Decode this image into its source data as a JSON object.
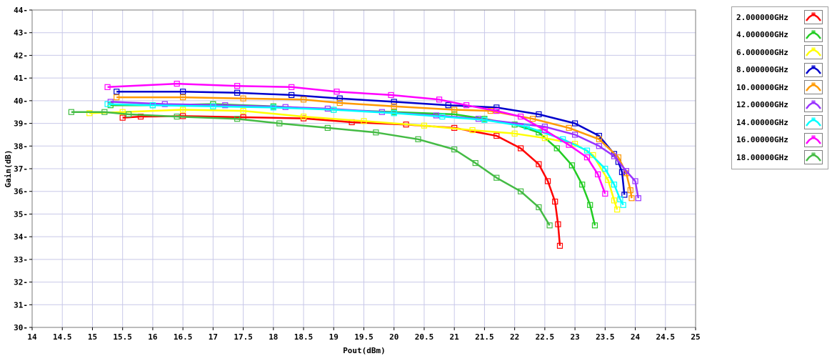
{
  "chart_data": {
    "type": "line",
    "xlabel": "Pout(dBm)",
    "ylabel": "Gain(dB)",
    "xlim": [
      14,
      25
    ],
    "ylim": [
      30,
      44
    ],
    "x_ticks": [
      "14",
      "14.5",
      "15",
      "15.5",
      "16",
      "16.5",
      "17",
      "17.5",
      "18",
      "18.5",
      "19",
      "19.5",
      "20",
      "20.5",
      "21",
      "21.5",
      "22",
      "22.5",
      "23",
      "23.5",
      "24",
      "24.5",
      "25"
    ],
    "y_ticks": [
      "30",
      "31",
      "32",
      "33",
      "34",
      "35",
      "36",
      "37",
      "38",
      "39",
      "40",
      "41",
      "42",
      "43",
      "44"
    ],
    "grid": true,
    "legend_position": "right",
    "series": [
      {
        "name": "2.000000GHz",
        "color": "#ff0000",
        "points": [
          [
            15.5,
            39.25
          ],
          [
            15.8,
            39.3
          ],
          [
            16.5,
            39.32
          ],
          [
            17.5,
            39.27
          ],
          [
            18.5,
            39.22
          ],
          [
            19.3,
            39.05
          ],
          [
            20.2,
            38.95
          ],
          [
            21,
            38.8
          ],
          [
            21.7,
            38.45
          ],
          [
            22.1,
            37.9
          ],
          [
            22.4,
            37.2
          ],
          [
            22.55,
            36.45
          ],
          [
            22.67,
            35.55
          ],
          [
            22.72,
            34.55
          ],
          [
            22.75,
            33.6
          ]
        ]
      },
      {
        "name": "4.000000GHz",
        "color": "#22cc22",
        "points": [
          [
            15.3,
            39.8
          ],
          [
            16,
            39.8
          ],
          [
            17,
            39.85
          ],
          [
            18,
            39.75
          ],
          [
            19,
            39.6
          ],
          [
            20,
            39.5
          ],
          [
            21,
            39.4
          ],
          [
            21.5,
            39.2
          ],
          [
            22,
            38.95
          ],
          [
            22.4,
            38.6
          ],
          [
            22.7,
            37.9
          ],
          [
            22.95,
            37.15
          ],
          [
            23.12,
            36.3
          ],
          [
            23.25,
            35.4
          ],
          [
            23.33,
            34.5
          ]
        ]
      },
      {
        "name": "6.000000GHz",
        "color": "#ffff00",
        "points": [
          [
            14.95,
            39.45
          ],
          [
            15.5,
            39.5
          ],
          [
            16.5,
            39.6
          ],
          [
            17.5,
            39.55
          ],
          [
            18.5,
            39.3
          ],
          [
            19.5,
            39.1
          ],
          [
            20.5,
            38.9
          ],
          [
            21.3,
            38.7
          ],
          [
            22,
            38.55
          ],
          [
            22.5,
            38.35
          ],
          [
            23,
            38.1
          ],
          [
            23.3,
            37.6
          ],
          [
            23.55,
            36.5
          ],
          [
            23.65,
            35.6
          ],
          [
            23.7,
            35.2
          ]
        ]
      },
      {
        "name": "8.000000GHz",
        "color": "#0000cc",
        "points": [
          [
            15.4,
            40.4
          ],
          [
            16.5,
            40.4
          ],
          [
            17.4,
            40.35
          ],
          [
            18.3,
            40.25
          ],
          [
            19.1,
            40.1
          ],
          [
            20,
            39.95
          ],
          [
            20.9,
            39.8
          ],
          [
            21.7,
            39.7
          ],
          [
            22.4,
            39.4
          ],
          [
            23,
            39
          ],
          [
            23.4,
            38.45
          ],
          [
            23.65,
            37.65
          ],
          [
            23.72,
            37.3
          ],
          [
            23.78,
            36.85
          ],
          [
            23.82,
            35.85
          ]
        ]
      },
      {
        "name": "10.00000GHz",
        "color": "#ff9900",
        "points": [
          [
            15.4,
            40.15
          ],
          [
            16.5,
            40.15
          ],
          [
            17.5,
            40.1
          ],
          [
            18.5,
            40.05
          ],
          [
            19.1,
            39.9
          ],
          [
            20,
            39.75
          ],
          [
            21,
            39.6
          ],
          [
            21.6,
            39.55
          ],
          [
            22.3,
            39.2
          ],
          [
            22.9,
            38.8
          ],
          [
            23.4,
            38.3
          ],
          [
            23.72,
            37.5
          ],
          [
            23.85,
            36.8
          ],
          [
            23.92,
            36.05
          ],
          [
            23.94,
            35.7
          ]
        ]
      },
      {
        "name": "12.00000GHz",
        "color": "#9933ff",
        "points": [
          [
            15.3,
            39.95
          ],
          [
            16.2,
            39.85
          ],
          [
            17.2,
            39.8
          ],
          [
            18.2,
            39.72
          ],
          [
            18.9,
            39.65
          ],
          [
            19.8,
            39.5
          ],
          [
            20.7,
            39.35
          ],
          [
            21.4,
            39.2
          ],
          [
            22.5,
            38.85
          ],
          [
            23,
            38.5
          ],
          [
            23.4,
            38
          ],
          [
            23.65,
            37.55
          ],
          [
            23.85,
            36.9
          ],
          [
            24,
            36.45
          ],
          [
            24.05,
            35.7
          ]
        ]
      },
      {
        "name": "14.00000GHz",
        "color": "#00ffff",
        "points": [
          [
            15.25,
            39.85
          ],
          [
            16,
            39.8
          ],
          [
            17,
            39.75
          ],
          [
            18,
            39.7
          ],
          [
            19,
            39.6
          ],
          [
            20,
            39.45
          ],
          [
            20.8,
            39.3
          ],
          [
            21.5,
            39.15
          ],
          [
            22.2,
            38.85
          ],
          [
            22.8,
            38.3
          ],
          [
            23.2,
            37.8
          ],
          [
            23.5,
            37
          ],
          [
            23.65,
            36.3
          ],
          [
            23.75,
            35.65
          ],
          [
            23.8,
            35.4
          ]
        ]
      },
      {
        "name": "16.00000GHz",
        "color": "#ff00ff",
        "points": [
          [
            15.25,
            40.6
          ],
          [
            16.4,
            40.75
          ],
          [
            17.4,
            40.65
          ],
          [
            18.3,
            40.6
          ],
          [
            19.05,
            40.4
          ],
          [
            19.95,
            40.25
          ],
          [
            20.75,
            40.05
          ],
          [
            21.2,
            39.8
          ],
          [
            21.7,
            39.55
          ],
          [
            22.1,
            39.3
          ],
          [
            22.5,
            38.7
          ],
          [
            22.9,
            38.05
          ],
          [
            23.2,
            37.5
          ],
          [
            23.38,
            36.75
          ],
          [
            23.5,
            35.9
          ]
        ]
      },
      {
        "name": "18.00000GHz",
        "color": "#44bb44",
        "points": [
          [
            14.65,
            39.5
          ],
          [
            15.2,
            39.5
          ],
          [
            15.6,
            39.4
          ],
          [
            16.4,
            39.3
          ],
          [
            17.4,
            39.2
          ],
          [
            18.1,
            39
          ],
          [
            18.9,
            38.8
          ],
          [
            19.7,
            38.6
          ],
          [
            20.4,
            38.3
          ],
          [
            21,
            37.85
          ],
          [
            21.35,
            37.25
          ],
          [
            21.7,
            36.6
          ],
          [
            22.1,
            36
          ],
          [
            22.4,
            35.3
          ],
          [
            22.58,
            34.5
          ]
        ]
      }
    ]
  }
}
